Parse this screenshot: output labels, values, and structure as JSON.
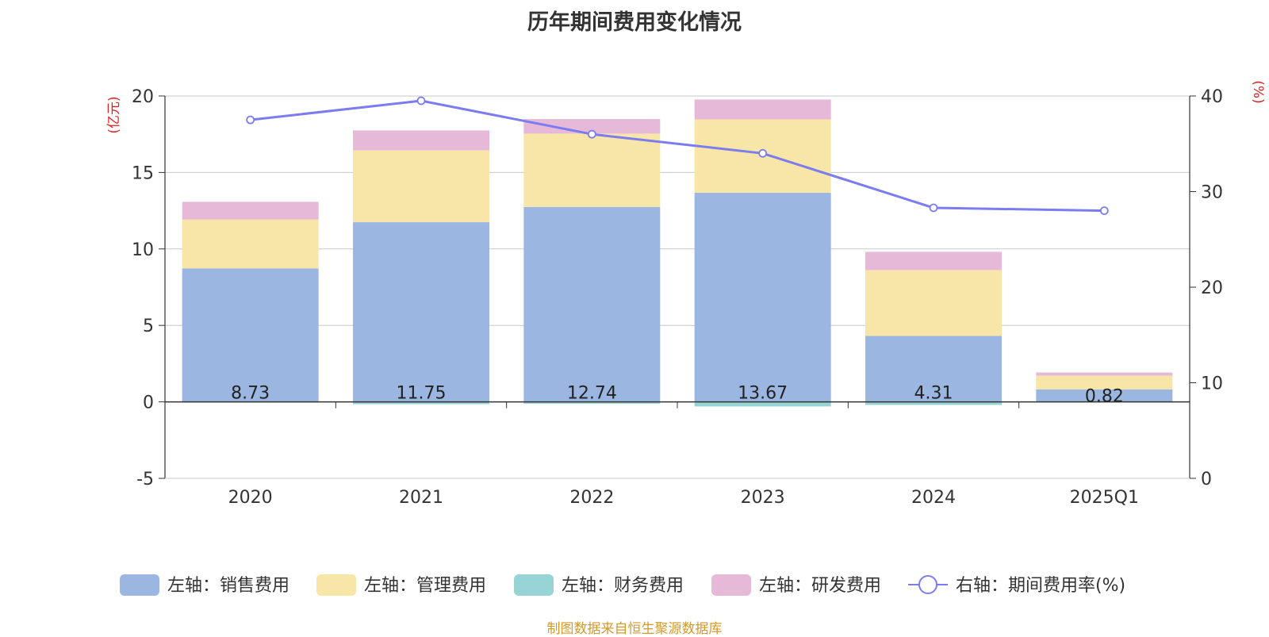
{
  "colors": {
    "sales": "#9bb7e1",
    "admin": "#f8e6a8",
    "finance": "#98d4d6",
    "rd": "#e6b9d9",
    "rate_line": "#7b7cef",
    "axis_unit": "#e02020",
    "source": "#d49a2a",
    "gridline": "#c8c8c8",
    "axis_text": "#333333"
  },
  "chart_data": {
    "type": "bar",
    "title": "历年期间费用变化情况",
    "categories": [
      "2020",
      "2021",
      "2022",
      "2023",
      "2024",
      "2025Q1"
    ],
    "left_axis": {
      "unit": "(亿元)",
      "ylim": [
        -5,
        20
      ],
      "ticks": [
        -5,
        0,
        5,
        10,
        15,
        20
      ]
    },
    "right_axis": {
      "unit": "(%)",
      "ylim": [
        0,
        40
      ],
      "ticks": [
        0,
        10,
        20,
        30,
        40
      ]
    },
    "grid": true,
    "legend_position": "bottom",
    "series": [
      {
        "name": "左轴：销售费用",
        "key": "sales",
        "type": "bar",
        "axis": "left",
        "values": [
          8.73,
          11.75,
          12.74,
          13.67,
          4.31,
          0.82
        ],
        "data_labels": [
          "8.73",
          "11.75",
          "12.74",
          "13.67",
          "4.31",
          "0.82"
        ]
      },
      {
        "name": "左轴：管理费用",
        "key": "admin",
        "type": "bar",
        "axis": "left",
        "values": [
          3.2,
          4.7,
          4.8,
          4.8,
          4.3,
          0.9
        ]
      },
      {
        "name": "左轴：财务费用",
        "key": "finance",
        "type": "bar",
        "axis": "left",
        "values": [
          -0.05,
          -0.15,
          -0.12,
          -0.3,
          -0.2,
          -0.02
        ]
      },
      {
        "name": "左轴：研发费用",
        "key": "rd",
        "type": "bar",
        "axis": "left",
        "values": [
          1.15,
          1.3,
          0.95,
          1.3,
          1.2,
          0.2
        ]
      },
      {
        "name": "右轴：期间费用率(%)",
        "key": "rate",
        "type": "line",
        "axis": "right",
        "values": [
          37.5,
          39.5,
          36.0,
          34.0,
          28.3,
          28.0
        ]
      }
    ]
  },
  "source_note": "制图数据来自恒生聚源数据库"
}
